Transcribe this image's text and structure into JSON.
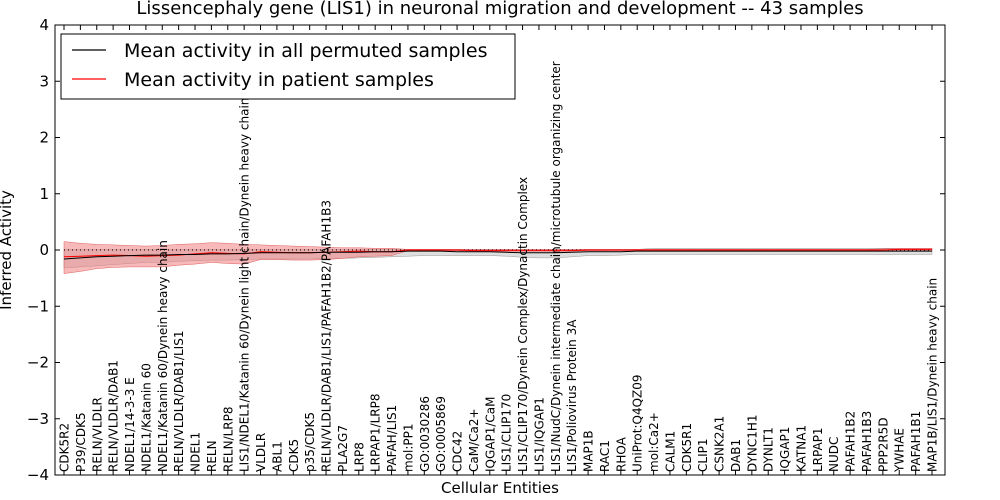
{
  "chart_data": {
    "type": "line",
    "title": "Lissencephaly gene (LIS1) in neuronal migration and development -- 43 samples",
    "xlabel": "Cellular Entities",
    "ylabel": "Inferred Activity",
    "ylim": [
      -4,
      4
    ],
    "yticks": [
      "4",
      "3",
      "2",
      "1",
      "0",
      "−1",
      "−2",
      "−3",
      "−4"
    ],
    "legend_position": "top-left",
    "colors": {
      "all": "#000000",
      "patient": "#ff0000",
      "patient_band": "#f08080",
      "all_band": "#c8c8c8"
    },
    "categories": [
      "CDK5R2",
      "P39/CDK5",
      "RELN/VLDLR",
      "RELN/VLDLR/DAB1",
      "NDEL1/14-3-3 E",
      "NDEL1/Katanin 60",
      "NDEL1/Katanin 60/Dynein heavy chain",
      "RELN/VLDLR/DAB1/LIS1",
      "NDEL1",
      "RELN",
      "RELN/LRP8",
      "LIS1/NDEL1/Katanin 60/Dynein light chain/Dynein heavy chain",
      "VLDLR",
      "ABL1",
      "CDK5",
      "p35/CDK5",
      "RELN/VLDLR/DAB1/LIS1/PAFAH1B2/PAFAH1B3",
      "PLA2G7",
      "LRP8",
      "LRPAP1/LRP8",
      "PAFAH/LIS1",
      "mol:PP1",
      "GO:0030286",
      "GO:0005869",
      "CDC42",
      "CaM/Ca2+",
      "IQGAP1/CaM",
      "LIS1/CLIP170",
      "LIS1/CLIP170/Dynein Complex/Dynactin Complex",
      "LIS1/IQGAP1",
      "LIS1/NudC/Dynein intermediate chain/microtubule organizing center",
      "LIS1/Poliovirus Protein 3A",
      "MAP1B",
      "RAC1",
      "RHOA",
      "UniProt:Q4QZ09",
      "mol:Ca2+",
      "CALM1",
      "CDK5R1",
      "CLIP1",
      "CSNK2A1",
      "DAB1",
      "DYNC1H1",
      "DYNLT1",
      "IQGAP1",
      "KATNA1",
      "LRPAP1",
      "NUDC",
      "PAFAH1B2",
      "PAFAH1B3",
      "PPP2R5D",
      "YWHAE",
      "PAFAH1B1",
      "MAP1B/LIS1/Dynein heavy chain"
    ],
    "series": [
      {
        "name": "Mean activity in all permuted samples",
        "values": [
          -0.16,
          -0.14,
          -0.12,
          -0.11,
          -0.1,
          -0.09,
          -0.09,
          -0.08,
          -0.08,
          -0.07,
          -0.07,
          -0.06,
          -0.05,
          -0.05,
          -0.05,
          -0.05,
          -0.04,
          -0.04,
          -0.04,
          -0.03,
          -0.03,
          -0.02,
          -0.02,
          -0.02,
          -0.03,
          -0.03,
          -0.03,
          -0.04,
          -0.05,
          -0.05,
          -0.05,
          -0.04,
          -0.03,
          -0.03,
          -0.03,
          -0.02,
          -0.02,
          -0.02,
          -0.02,
          -0.02,
          -0.02,
          -0.02,
          -0.02,
          -0.02,
          -0.02,
          -0.02,
          -0.02,
          -0.02,
          -0.02,
          -0.02,
          -0.02,
          -0.02,
          -0.02,
          -0.02
        ],
        "band_upper": [
          0.01,
          0.01,
          0.01,
          0.01,
          0.01,
          0.01,
          0.01,
          0.01,
          0.01,
          0.01,
          0.01,
          0.01,
          0.01,
          0.01,
          0.01,
          0.01,
          0.01,
          0.01,
          0.01,
          0.01,
          0.01,
          0.01,
          0.01,
          0.01,
          0.01,
          0.01,
          0.01,
          0.01,
          0.01,
          0.01,
          0.01,
          0.01,
          0.01,
          0.01,
          0.01,
          0.01,
          0.03,
          0.03,
          0.03,
          0.03,
          0.03,
          0.03,
          0.03,
          0.03,
          0.03,
          0.03,
          0.03,
          0.03,
          0.03,
          0.03,
          0.03,
          0.03,
          0.03,
          0.03
        ],
        "band_lower": [
          -0.32,
          -0.3,
          -0.28,
          -0.26,
          -0.24,
          -0.22,
          -0.22,
          -0.2,
          -0.19,
          -0.18,
          -0.18,
          -0.17,
          -0.16,
          -0.16,
          -0.16,
          -0.16,
          -0.15,
          -0.15,
          -0.14,
          -0.13,
          -0.12,
          -0.11,
          -0.1,
          -0.1,
          -0.1,
          -0.1,
          -0.1,
          -0.11,
          -0.13,
          -0.14,
          -0.14,
          -0.12,
          -0.1,
          -0.1,
          -0.09,
          -0.08,
          -0.08,
          -0.08,
          -0.08,
          -0.08,
          -0.08,
          -0.08,
          -0.08,
          -0.08,
          -0.08,
          -0.08,
          -0.08,
          -0.08,
          -0.08,
          -0.08,
          -0.08,
          -0.08,
          -0.08,
          -0.08
        ]
      },
      {
        "name": "Mean activity in patient samples",
        "values": [
          -0.12,
          -0.11,
          -0.1,
          -0.09,
          -0.1,
          -0.11,
          -0.1,
          -0.09,
          -0.07,
          -0.05,
          -0.06,
          -0.07,
          -0.03,
          -0.04,
          -0.05,
          -0.05,
          -0.04,
          -0.03,
          -0.02,
          -0.03,
          -0.03,
          0.0,
          0.0,
          0.0,
          0.0,
          -0.01,
          -0.01,
          -0.01,
          -0.01,
          -0.01,
          -0.01,
          -0.01,
          0.0,
          0.0,
          0.0,
          0.0,
          0.0,
          0.0,
          0.0,
          0.0,
          0.0,
          0.0,
          0.0,
          0.0,
          0.0,
          0.0,
          0.0,
          0.0,
          0.0,
          0.0,
          0.0,
          0.01,
          0.01,
          0.01
        ],
        "band_upper": [
          0.15,
          0.12,
          0.1,
          0.09,
          0.08,
          0.07,
          0.08,
          0.1,
          0.11,
          0.13,
          0.12,
          0.1,
          0.09,
          0.08,
          0.07,
          0.06,
          0.05,
          0.04,
          0.04,
          0.03,
          0.03,
          0.01,
          0.01,
          0.01,
          0.01,
          0.01,
          0.01,
          0.01,
          0.01,
          0.01,
          0.01,
          0.01,
          0.01,
          0.01,
          0.01,
          0.01,
          0.01,
          0.01,
          0.01,
          0.01,
          0.01,
          0.01,
          0.01,
          0.01,
          0.01,
          0.01,
          0.01,
          0.01,
          0.01,
          0.01,
          0.02,
          0.03,
          0.03,
          0.03
        ],
        "band_lower": [
          -0.42,
          -0.38,
          -0.33,
          -0.31,
          -0.3,
          -0.3,
          -0.3,
          -0.27,
          -0.25,
          -0.22,
          -0.24,
          -0.25,
          -0.17,
          -0.17,
          -0.18,
          -0.18,
          -0.17,
          -0.15,
          -0.12,
          -0.11,
          -0.1,
          -0.01,
          -0.01,
          -0.01,
          -0.01,
          -0.02,
          -0.02,
          -0.02,
          -0.02,
          -0.02,
          -0.02,
          -0.02,
          -0.01,
          -0.01,
          -0.01,
          -0.01,
          -0.01,
          -0.01,
          -0.01,
          -0.01,
          -0.01,
          -0.01,
          -0.01,
          -0.01,
          -0.01,
          -0.01,
          -0.01,
          -0.01,
          -0.01,
          -0.01,
          -0.01,
          -0.01,
          -0.01,
          -0.01
        ]
      }
    ]
  }
}
